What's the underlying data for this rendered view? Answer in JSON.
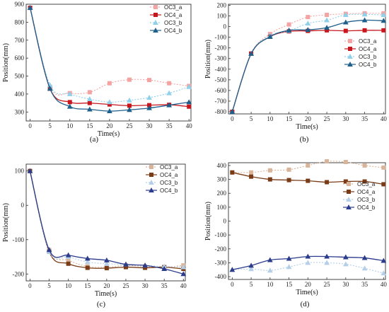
{
  "chart_data": [
    {
      "type": "line",
      "panel_label": "(a)",
      "xlabel": "Time(s)",
      "ylabel": "Position(mm)",
      "xlim": [
        -1,
        40.5
      ],
      "ylim": [
        250,
        900
      ],
      "xticks": [
        0,
        5,
        10,
        15,
        20,
        25,
        30,
        35,
        40
      ],
      "yticks": [
        300,
        400,
        500,
        600,
        700,
        800,
        900
      ],
      "legend_position": "top-right",
      "x": [
        0,
        5,
        10,
        15,
        20,
        25,
        30,
        35,
        40
      ],
      "series": [
        {
          "name": "OC3_a",
          "values": [
            880,
            440,
            405,
            410,
            460,
            480,
            478,
            460,
            445
          ],
          "color": "#f4a3a3",
          "marker": "square",
          "dashed": true
        },
        {
          "name": "OC4_a",
          "values": [
            880,
            430,
            355,
            350,
            342,
            335,
            338,
            340,
            330
          ],
          "color": "#c8161d",
          "marker": "square",
          "dashed": false
        },
        {
          "name": "OC3_b",
          "values": [
            880,
            450,
            400,
            372,
            355,
            365,
            380,
            405,
            440
          ],
          "color": "#8fd0ea",
          "marker": "triangle",
          "dashed": true
        },
        {
          "name": "OC4_b",
          "values": [
            880,
            430,
            330,
            315,
            305,
            312,
            322,
            338,
            355
          ],
          "color": "#1f5f8b",
          "marker": "triangle",
          "dashed": false
        }
      ]
    },
    {
      "type": "line",
      "panel_label": "(b)",
      "xlabel": "Time(s)",
      "ylabel": "Position(mm)",
      "xlim": [
        -1,
        40.5
      ],
      "ylim": [
        -820,
        210
      ],
      "xticks": [
        0,
        5,
        10,
        15,
        20,
        25,
        30,
        35,
        40
      ],
      "yticks": [
        -800,
        -700,
        -600,
        -500,
        -400,
        -300,
        -200,
        -100,
        0,
        100,
        200
      ],
      "legend_position": "right",
      "x": [
        0,
        5,
        10,
        15,
        20,
        25,
        30,
        35,
        40
      ],
      "series": [
        {
          "name": "OC3_a",
          "values": [
            -800,
            -250,
            -70,
            20,
            90,
            110,
            120,
            125,
            125
          ],
          "color": "#f4a3a3",
          "marker": "square",
          "dashed": true
        },
        {
          "name": "OC4_a",
          "values": [
            -800,
            -255,
            -95,
            -45,
            -40,
            -35,
            -40,
            -35,
            -35
          ],
          "color": "#c8161d",
          "marker": "square",
          "dashed": false
        },
        {
          "name": "OC3_b",
          "values": [
            -800,
            -255,
            -85,
            -40,
            30,
            60,
            110,
            115,
            110
          ],
          "color": "#8fd0ea",
          "marker": "triangle",
          "dashed": true
        },
        {
          "name": "OC4_b",
          "values": [
            -800,
            -255,
            -95,
            -35,
            -30,
            -10,
            40,
            60,
            55
          ],
          "color": "#1f5f8b",
          "marker": "triangle",
          "dashed": false
        }
      ]
    },
    {
      "type": "line",
      "panel_label": "(c)",
      "xlabel": "Time(s)",
      "ylabel": "Position(mm)",
      "xlim": [
        -1,
        40.5
      ],
      "ylim": [
        -220,
        120
      ],
      "xticks": [
        0,
        5,
        10,
        15,
        20,
        25,
        30,
        35,
        40
      ],
      "yticks": [
        -200,
        -100,
        0,
        100
      ],
      "legend_position": "top-right",
      "x": [
        0,
        5,
        10,
        15,
        20,
        25,
        30,
        35,
        40
      ],
      "series": [
        {
          "name": "OC3_a",
          "values": [
            100,
            -130,
            -160,
            -178,
            -180,
            -175,
            -178,
            -180,
            -175
          ],
          "color": "#d8b49a",
          "marker": "square",
          "dashed": true
        },
        {
          "name": "OC4_a",
          "values": [
            100,
            -135,
            -170,
            -182,
            -183,
            -180,
            -182,
            -180,
            -185
          ],
          "color": "#7a3b17",
          "marker": "square",
          "dashed": false
        },
        {
          "name": "OC3_b",
          "values": [
            100,
            -135,
            -150,
            -165,
            -170,
            -172,
            -175,
            -178,
            -180
          ],
          "color": "#b5cfe8",
          "marker": "triangle",
          "dashed": true
        },
        {
          "name": "OC4_b",
          "values": [
            100,
            -130,
            -145,
            -155,
            -160,
            -172,
            -175,
            -185,
            -200
          ],
          "color": "#2b3c8c",
          "marker": "triangle",
          "dashed": false
        }
      ]
    },
    {
      "type": "line",
      "panel_label": "(d)",
      "xlabel": "Time(s)",
      "ylabel": "Position(mm)",
      "xlim": [
        -1,
        40.5
      ],
      "ylim": [
        -420,
        420
      ],
      "xticks": [
        0,
        5,
        10,
        15,
        20,
        25,
        30,
        35,
        40
      ],
      "yticks": [
        -400,
        -300,
        -200,
        -100,
        0,
        100,
        200,
        300,
        400
      ],
      "legend_position": "right",
      "x": [
        0,
        5,
        10,
        15,
        20,
        25,
        30,
        35,
        40
      ],
      "series": [
        {
          "name": "OC3_a",
          "values": [
            350,
            350,
            365,
            370,
            400,
            430,
            425,
            400,
            385
          ],
          "color": "#d8b49a",
          "marker": "square",
          "dashed": true
        },
        {
          "name": "OC4_a",
          "values": [
            350,
            320,
            300,
            295,
            290,
            280,
            285,
            285,
            265
          ],
          "color": "#7a3b17",
          "marker": "square",
          "dashed": false
        },
        {
          "name": "OC3_b",
          "values": [
            -350,
            -345,
            -355,
            -330,
            -300,
            -300,
            -310,
            -340,
            -375
          ],
          "color": "#b5cfe8",
          "marker": "triangle",
          "dashed": true
        },
        {
          "name": "OC4_b",
          "values": [
            -350,
            -320,
            -280,
            -270,
            -255,
            -255,
            -260,
            -265,
            -285
          ],
          "color": "#2b3c8c",
          "marker": "triangle",
          "dashed": false
        }
      ]
    }
  ]
}
